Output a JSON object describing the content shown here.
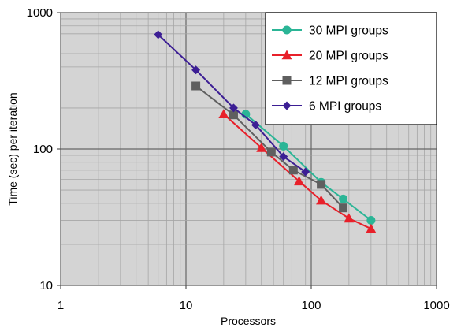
{
  "chart_data": {
    "type": "line",
    "xlabel": "Processors",
    "ylabel": "Time (sec) per iteration",
    "xscale": "log",
    "yscale": "log",
    "xlim": [
      1,
      1000
    ],
    "ylim": [
      10,
      1000
    ],
    "x_ticks": [
      "1",
      "10",
      "100",
      "1000"
    ],
    "y_ticks": [
      "10",
      "100",
      "1000"
    ],
    "grid": true,
    "legend_position": "top-right",
    "series": [
      {
        "name": "30 MPI groups",
        "color": "#2bb596",
        "marker": "circle",
        "points": [
          [
            30,
            180
          ],
          [
            60,
            105
          ],
          [
            120,
            57
          ],
          [
            180,
            43
          ],
          [
            300,
            30
          ]
        ]
      },
      {
        "name": "20 MPI groups",
        "color": "#e8202a",
        "marker": "triangle",
        "points": [
          [
            20,
            180
          ],
          [
            40,
            102
          ],
          [
            80,
            58
          ],
          [
            120,
            42
          ],
          [
            200,
            31
          ],
          [
            300,
            26
          ]
        ]
      },
      {
        "name": "12 MPI groups",
        "color": "#5f5f5f",
        "marker": "square",
        "points": [
          [
            12,
            290
          ],
          [
            24,
            178
          ],
          [
            48,
            95
          ],
          [
            72,
            70
          ],
          [
            120,
            55
          ],
          [
            180,
            37
          ]
        ]
      },
      {
        "name": "6 MPI groups",
        "color": "#3c1e94",
        "marker": "diamond",
        "points": [
          [
            6,
            690
          ],
          [
            12,
            380
          ],
          [
            24,
            200
          ],
          [
            36,
            150
          ],
          [
            60,
            88
          ],
          [
            90,
            68
          ]
        ]
      }
    ]
  }
}
